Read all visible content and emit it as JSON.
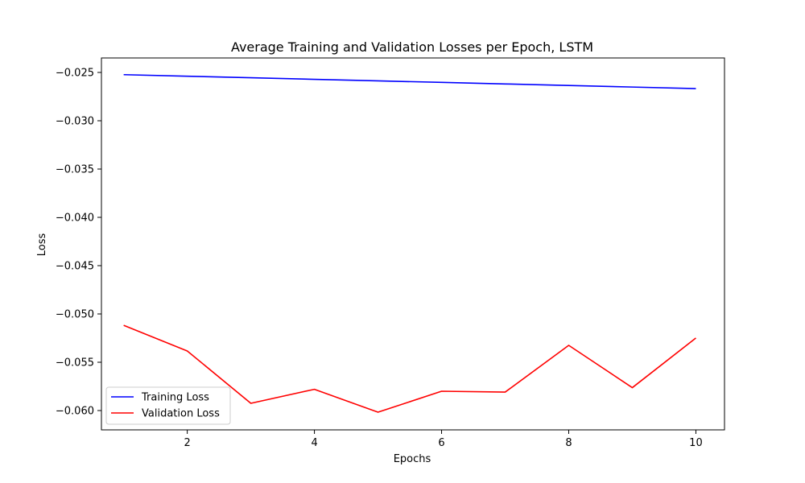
{
  "chart_data": {
    "type": "line",
    "title": "Average Training and Validation Losses per Epoch, LSTM",
    "xlabel": "Epochs",
    "ylabel": "Loss",
    "xlim": [
      0.65,
      10.45
    ],
    "ylim": [
      -0.062,
      -0.0235
    ],
    "xticks": [
      2,
      4,
      6,
      8,
      10
    ],
    "yticks": [
      -0.025,
      -0.03,
      -0.035,
      -0.04,
      -0.045,
      -0.05,
      -0.055,
      -0.06
    ],
    "ytick_labels": [
      "−0.025",
      "−0.030",
      "−0.035",
      "−0.040",
      "−0.045",
      "−0.050",
      "−0.055",
      "−0.060"
    ],
    "grid": false,
    "legend": "bottom-left",
    "x": [
      1,
      2,
      3,
      4,
      5,
      6,
      7,
      8,
      9,
      10
    ],
    "series": [
      {
        "name": "Training Loss",
        "color": "#0000ff",
        "values": [
          -0.02523,
          -0.02539,
          -0.02555,
          -0.02571,
          -0.02587,
          -0.02603,
          -0.02619,
          -0.02635,
          -0.02651,
          -0.02667
        ]
      },
      {
        "name": "Validation Loss",
        "color": "#ff0000",
        "values": [
          -0.05118,
          -0.05383,
          -0.05925,
          -0.0578,
          -0.06017,
          -0.058,
          -0.05809,
          -0.05325,
          -0.05763,
          -0.05249
        ]
      }
    ]
  }
}
